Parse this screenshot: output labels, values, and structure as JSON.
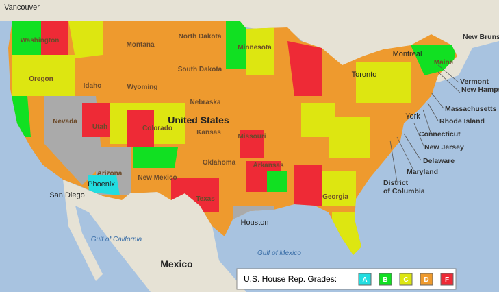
{
  "map_labels": {
    "cities": [
      "Vancouver",
      "Montreal",
      "Toronto",
      "San Diego",
      "Houston",
      "Phoenix",
      "York"
    ],
    "states": [
      "Washington",
      "Oregon",
      "Idaho",
      "Montana",
      "Wyoming",
      "Nevada",
      "Utah",
      "Colorado",
      "Arizona",
      "New Mexico",
      "North Dakota",
      "South Dakota",
      "Nebraska",
      "Kansas",
      "Oklahoma",
      "Texas",
      "Minnesota",
      "Missouri",
      "Arkansas",
      "Georgia",
      "Maine",
      "New Brunswick"
    ],
    "northeast": [
      "Vermont",
      "New Hampshire",
      "Massachusetts",
      "Rhode Island",
      "Connecticut",
      "New Jersey",
      "Delaware",
      "Maryland",
      "District of Columbia"
    ],
    "country_us": "United States",
    "country_mx": "Mexico",
    "waters": [
      "Gulf of California",
      "Gulf of Mexico"
    ]
  },
  "legend": {
    "title": "U.S. House Rep. Grades:",
    "grades": [
      {
        "label": "A",
        "color": "#22dde0"
      },
      {
        "label": "B",
        "color": "#11e022"
      },
      {
        "label": "C",
        "color": "#dde611"
      },
      {
        "label": "D",
        "color": "#ee9a2e"
      },
      {
        "label": "F",
        "color": "#ee2a36"
      }
    ]
  }
}
